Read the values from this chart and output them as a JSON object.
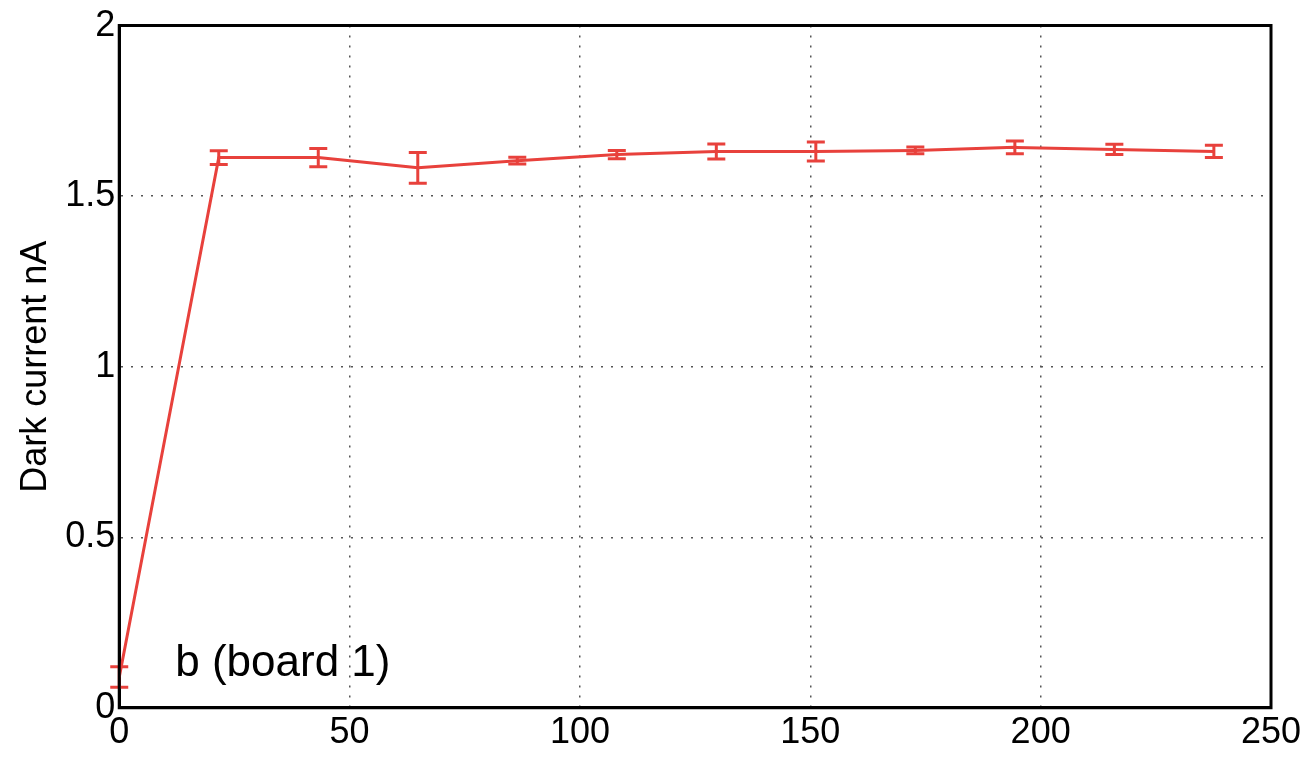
{
  "chart_data": {
    "type": "line",
    "ylabel": "Dark current nA",
    "annotations": [
      "b (board 1)"
    ],
    "x": [
      0,
      21.6,
      43.2,
      64.8,
      86.4,
      108,
      129.6,
      151.2,
      172.8,
      194.4,
      216,
      237.6
    ],
    "series": [
      {
        "color": "#e8413c",
        "values": [
          0.09,
          1.613,
          1.613,
          1.583,
          1.604,
          1.622,
          1.631,
          1.631,
          1.634,
          1.643,
          1.637,
          1.631
        ],
        "errors": [
          0.03,
          0.02,
          0.027,
          0.045,
          0.01,
          0.012,
          0.022,
          0.028,
          0.01,
          0.019,
          0.015,
          0.018
        ]
      }
    ],
    "xlim": [
      0,
      250
    ],
    "xticks": [
      0,
      50,
      100,
      150,
      200,
      250
    ],
    "ylim": [
      0,
      2
    ],
    "yticks": [
      0,
      0.5,
      1,
      1.5,
      2
    ],
    "grid": true,
    "legend": false,
    "line_style": "solid"
  }
}
